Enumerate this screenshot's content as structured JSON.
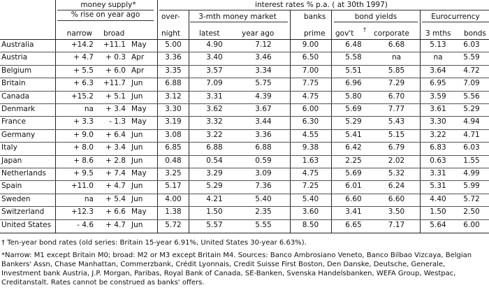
{
  "headers": {
    "money_supply": "money supply*",
    "rise_on_year": "% rise on year ago",
    "narrow": "narrow",
    "broad": "broad",
    "interest_rates": "interest rates % p.a. ( at 30th 1997)",
    "overnight_1": "over-",
    "overnight_2": "night",
    "three_mth": "3-mth money market",
    "latest": "latest",
    "year_ago": "year ago",
    "banks_1": "banks",
    "banks_2": "prime",
    "bond_yields": "bond yields",
    "govt": "gov't",
    "corporate": "corporate",
    "eurocurrency": "Eurocurrency",
    "three_mths": "3 mths",
    "bonds": "bonds"
  },
  "rows": [
    {
      "country": "Australia",
      "narrow": "+14.2",
      "broad": "+11.1",
      "month": "May",
      "overnight": "5.00",
      "latest": "4.90",
      "year_ago": "7.12",
      "prime": "9.00",
      "govt": "6.48",
      "corp": "6.68",
      "e3m": "5.13",
      "ebonds": "6.03"
    },
    {
      "country": "Austria",
      "narrow": "+ 4.7",
      "broad": "+ 0.3",
      "month": "Apr",
      "overnight": "3.36",
      "latest": "3.40",
      "year_ago": "3.46",
      "prime": "6.50",
      "govt": "5.58",
      "corp": "na",
      "e3m": "na",
      "ebonds": "5.59"
    },
    {
      "country": "Belgium",
      "narrow": "+ 5.5",
      "broad": "+ 6.0",
      "month": "Apr",
      "overnight": "3.35",
      "latest": "3.57",
      "year_ago": "3.34",
      "prime": "7.00",
      "govt": "5.51",
      "corp": "5.85",
      "e3m": "3.64",
      "ebonds": "4.72"
    },
    {
      "country": "Britain",
      "narrow": "+ 6.3",
      "broad": "+11.7",
      "month": "Jun",
      "overnight": "6.88",
      "latest": "7.09",
      "year_ago": "5.75",
      "prime": "7.75",
      "govt": "6.96",
      "corp": "7.29",
      "e3m": "6.95",
      "ebonds": "7.09"
    },
    {
      "country": "Canada",
      "narrow": "+15.2",
      "broad": "+ 5.1",
      "month": "Jun",
      "overnight": "3.12",
      "latest": "3.31",
      "year_ago": "4.39",
      "prime": "4.75",
      "govt": "5.80",
      "corp": "6.70",
      "e3m": "3.59",
      "ebonds": "5.56"
    },
    {
      "country": "Denmark",
      "narrow": "na",
      "broad": "+ 3.4",
      "month": "May",
      "overnight": "3.30",
      "latest": "3.62",
      "year_ago": "3.67",
      "prime": "6.00",
      "govt": "5.69",
      "corp": "7.77",
      "e3m": "3.61",
      "ebonds": "5.29"
    },
    {
      "country": "France",
      "narrow": "+ 3.3",
      "broad": "- 1.3",
      "month": "May",
      "overnight": "3.19",
      "latest": "3.32",
      "year_ago": "3.44",
      "prime": "6.30",
      "govt": "5.29",
      "corp": "5.43",
      "e3m": "3.30",
      "ebonds": "4.94"
    },
    {
      "country": "Germany",
      "narrow": "+ 9.0",
      "broad": "+ 6.4",
      "month": "Jun",
      "overnight": "3.08",
      "latest": "3.22",
      "year_ago": "3.36",
      "prime": "4.55",
      "govt": "5.41",
      "corp": "5.15",
      "e3m": "3.22",
      "ebonds": "4.71"
    },
    {
      "country": "Italy",
      "narrow": "+ 8.0",
      "broad": "+ 3.4",
      "month": "Jun",
      "overnight": "6.85",
      "latest": "6.88",
      "year_ago": "6.88",
      "prime": "9.38",
      "govt": "6.42",
      "corp": "6.79",
      "e3m": "6.83",
      "ebonds": "6.03"
    },
    {
      "country": "Japan",
      "narrow": "+ 8.6",
      "broad": "+ 2.8",
      "month": "Jun",
      "overnight": "0.48",
      "latest": "0.54",
      "year_ago": "0.59",
      "prime": "1.63",
      "govt": "2.25",
      "corp": "2.02",
      "e3m": "0.63",
      "ebonds": "1.55"
    },
    {
      "country": "Netherlands",
      "narrow": "+ 9.5",
      "broad": "+ 7.4",
      "month": "May",
      "overnight": "3.25",
      "latest": "3.29",
      "year_ago": "3.09",
      "prime": "4.75",
      "govt": "5.69",
      "corp": "5.32",
      "e3m": "3.31",
      "ebonds": "4.99"
    },
    {
      "country": "Spain",
      "narrow": "+11.0",
      "broad": "+ 4.7",
      "month": "Jun",
      "overnight": "5.17",
      "latest": "5.29",
      "year_ago": "7.36",
      "prime": "7.25",
      "govt": "6.01",
      "corp": "6.24",
      "e3m": "5.31",
      "ebonds": "5.99"
    },
    {
      "country": "Sweden",
      "narrow": "na",
      "broad": "+ 5.4",
      "month": "Jun",
      "overnight": "4.00",
      "latest": "4.21",
      "year_ago": "5.40",
      "prime": "5.40",
      "govt": "6.60",
      "corp": "6.60",
      "e3m": "4.40",
      "ebonds": "5.72"
    },
    {
      "country": "Switzerland",
      "narrow": "+12.3",
      "broad": "+ 6.6",
      "month": "May",
      "overnight": "1.38",
      "latest": "1.50",
      "year_ago": "2.35",
      "prime": "3.60",
      "govt": "3.41",
      "corp": "3.50",
      "e3m": "1.50",
      "ebonds": "2.50"
    },
    {
      "country": "United States",
      "narrow": "- 4.6",
      "broad": "+ 4.7",
      "month": "Jun",
      "overnight": "5.72",
      "latest": "5.57",
      "year_ago": "5.55",
      "prime": "8.50",
      "govt": "6.65",
      "corp": "7.17",
      "e3m": "5.64",
      "ebonds": "6.00"
    }
  ],
  "footnotes": {
    "dagger": "† Ten-year bond rates (old series: Britain 15-year 6.91%, United States 30-year 6.63%).",
    "notes": "*Narrow: M1 except Britain M0; broad: M2 or M3 except Britain M4. Sources: Banco Ambrosiano Veneto, Banco Bilbao Vizcaya, Belgian Bankers' Assn, Chase Manhattan, Commerzbank, Crédit Lyonnais, Credit Suisse First Boston, Den Danske, Deutsche, Generale, Investment bank Austria, J.P. Morgan, Paribas, Royal Bank of Canada, SE-Banken, Svenska Handelsbanken, WEFA Group, Westpac, Creditanstalt. Rates cannot be construed as banks' offers."
  }
}
